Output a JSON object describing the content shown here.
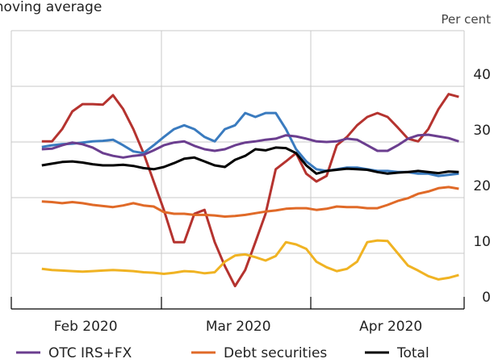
{
  "chart_data": {
    "type": "line",
    "subtitle": "moving average",
    "y_label": "Per cent",
    "categories": [
      null,
      null,
      null,
      null,
      null,
      null,
      null,
      "Feb 2020",
      null,
      null,
      null,
      null,
      null,
      null,
      null,
      null,
      null,
      null,
      null,
      null,
      null,
      null,
      "Mar 2020",
      null,
      null,
      null,
      null,
      null,
      null,
      null,
      null,
      null,
      null,
      null,
      null,
      null,
      null,
      "Apr 2020",
      null,
      null,
      null,
      null,
      null,
      null,
      null
    ],
    "ylim": [
      0,
      50
    ],
    "yticks": [
      0,
      10,
      20,
      30,
      40
    ],
    "grid": true,
    "series": [
      {
        "color": "#b5332f",
        "values": [
          null,
          null,
          null,
          30.1,
          30.1,
          32.3,
          35.5,
          36.8,
          36.8,
          36.7,
          38.4,
          35.9,
          32.3,
          28.0,
          22.9,
          17.8,
          12.0,
          12.0,
          17.1,
          17.8,
          12.0,
          7.7,
          4.1,
          7.0,
          12.0,
          17.1,
          25.1,
          26.5,
          28.0,
          24.3,
          22.9,
          23.9,
          29.4,
          30.9,
          33.0,
          34.5,
          35.2,
          34.5,
          32.6,
          30.6,
          30.1,
          32.3,
          35.9,
          38.6,
          38.1
        ]
      },
      {
        "color": "#3a7bbf",
        "values": [
          null,
          null,
          null,
          29.1,
          29.4,
          29.6,
          29.7,
          29.9,
          30.1,
          30.2,
          30.4,
          29.4,
          28.3,
          28.0,
          29.4,
          30.9,
          32.3,
          33.0,
          32.3,
          30.9,
          30.1,
          32.3,
          33.0,
          35.2,
          34.5,
          35.2,
          35.2,
          32.3,
          28.7,
          26.5,
          25.1,
          24.8,
          25.1,
          25.4,
          25.4,
          25.1,
          24.8,
          24.8,
          24.6,
          24.6,
          24.3,
          24.3,
          23.9,
          24.1,
          24.3
        ]
      },
      {
        "color": "#f0b323",
        "values": [
          null,
          null,
          null,
          7.2,
          7.0,
          6.9,
          6.8,
          6.7,
          6.8,
          6.9,
          7.0,
          6.9,
          6.8,
          6.6,
          6.5,
          6.3,
          6.5,
          6.8,
          6.7,
          6.4,
          6.6,
          8.5,
          9.6,
          9.8,
          9.3,
          8.7,
          9.5,
          12.0,
          11.6,
          10.8,
          8.5,
          7.5,
          6.8,
          7.2,
          8.5,
          12.0,
          12.3,
          12.2,
          10.0,
          7.8,
          6.9,
          5.9,
          5.3,
          5.6,
          6.1
        ]
      },
      {
        "name": "OTC IRS+FX",
        "color": "#6b3e8f",
        "values": [
          null,
          null,
          null,
          28.7,
          28.8,
          29.4,
          29.9,
          29.6,
          29.0,
          28.0,
          27.5,
          27.2,
          27.5,
          27.7,
          28.5,
          29.4,
          29.9,
          30.1,
          29.3,
          28.7,
          28.4,
          28.7,
          29.4,
          29.9,
          30.1,
          30.4,
          30.6,
          31.2,
          31.0,
          30.6,
          30.1,
          30.0,
          30.1,
          30.6,
          30.4,
          29.4,
          28.4,
          28.4,
          29.4,
          30.6,
          31.2,
          31.3,
          31.0,
          30.7,
          30.1
        ]
      },
      {
        "name": "Debt securities",
        "color": "#e06a28",
        "values": [
          null,
          null,
          null,
          19.3,
          19.2,
          19.0,
          19.2,
          19.0,
          18.7,
          18.5,
          18.3,
          18.6,
          19.0,
          18.6,
          18.4,
          17.4,
          17.1,
          17.1,
          16.9,
          16.9,
          16.8,
          16.6,
          16.7,
          16.9,
          17.2,
          17.5,
          17.7,
          18.0,
          18.1,
          18.1,
          17.8,
          18.0,
          18.4,
          18.3,
          18.3,
          18.1,
          18.1,
          18.7,
          19.4,
          19.9,
          20.7,
          21.1,
          21.7,
          21.9,
          21.6
        ]
      },
      {
        "name": "Total",
        "color": "#000000",
        "values": [
          null,
          null,
          null,
          25.8,
          26.1,
          26.4,
          26.5,
          26.3,
          26.0,
          25.8,
          25.8,
          25.9,
          25.7,
          25.3,
          25.1,
          25.5,
          26.2,
          27.0,
          27.2,
          26.5,
          25.8,
          25.5,
          26.8,
          27.5,
          28.7,
          28.5,
          29.0,
          28.9,
          28.0,
          25.8,
          24.3,
          24.8,
          25.0,
          25.2,
          25.1,
          25.0,
          24.6,
          24.3,
          24.5,
          24.6,
          24.8,
          24.6,
          24.4,
          24.7,
          24.6
        ]
      }
    ]
  }
}
